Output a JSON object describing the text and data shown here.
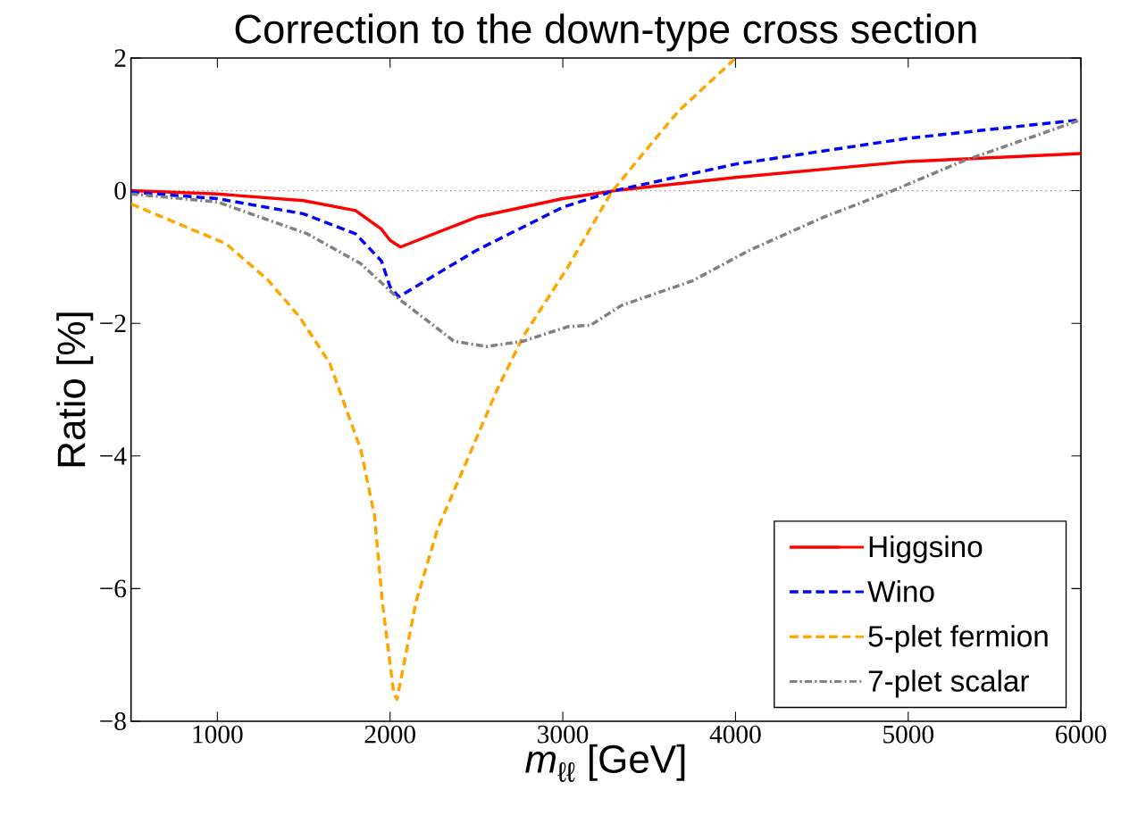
{
  "chart_data": {
    "type": "line",
    "title": "Correction to the down-type cross section",
    "xlabel": "*m*$_{ℓℓ}$ [GeV]",
    "ylabel": "Ratio [%]",
    "xlim": [
      500,
      6000
    ],
    "ylim": [
      -8,
      2
    ],
    "xticks": [
      1000,
      2000,
      3000,
      4000,
      5000,
      6000
    ],
    "yticks": [
      {
        "value": -8,
        "label": "−8"
      },
      {
        "value": -6,
        "label": "−6"
      },
      {
        "value": -4,
        "label": "−4"
      },
      {
        "value": -2,
        "label": "−2"
      },
      0,
      2
    ],
    "legend": "bottom right",
    "grid": false,
    "marker": "none",
    "ref_lines": [
      {
        "axis": "y",
        "value": 0,
        "color": "#808080",
        "line_style": "dotted"
      }
    ],
    "series": [
      {
        "name": "Higgsino",
        "color": "#ff0000",
        "line_style": "solid",
        "x": [
          500,
          1000,
          1500,
          1800,
          1950,
          2000,
          2060,
          2500,
          3000,
          3300,
          4000,
          5000,
          6000
        ],
        "values": [
          0,
          -0.05,
          -0.15,
          -0.3,
          -0.58,
          -0.75,
          -0.85,
          -0.4,
          -0.12,
          0,
          0.2,
          0.44,
          0.56
        ]
      },
      {
        "name": "Wino",
        "color": "#0000ff",
        "line_style": "dashed",
        "x": [
          500,
          1000,
          1500,
          1800,
          1950,
          2000,
          2050,
          2500,
          3000,
          3300,
          4000,
          5000,
          6000
        ],
        "values": [
          -0.02,
          -0.12,
          -0.35,
          -0.65,
          -1.06,
          -1.45,
          -1.6,
          -0.9,
          -0.25,
          0,
          0.4,
          0.79,
          1.07
        ]
      },
      {
        "name": "5-plet fermion",
        "color": "#ffa500",
        "line_style": "dashed",
        "x": [
          500,
          1050,
          1290,
          1475,
          1650,
          1830,
          1910,
          1955,
          2020,
          2040,
          2150,
          2275,
          2440,
          2620,
          2770,
          3030,
          3280,
          3465,
          3670,
          3960,
          4000
        ],
        "values": [
          -0.2,
          -0.8,
          -1.34,
          -1.9,
          -2.6,
          -3.9,
          -4.9,
          -6.2,
          -7.55,
          -7.67,
          -6.2,
          -5.1,
          -4.1,
          -3.0,
          -2.2,
          -1.15,
          -0.03,
          0.56,
          1.2,
          1.9,
          2.0
        ]
      },
      {
        "name": "7-plet scalar",
        "color": "#808080",
        "line_style": "dashdot",
        "x": [
          500,
          1000,
          1520,
          1830,
          2050,
          2210,
          2370,
          2560,
          2770,
          3030,
          3160,
          3340,
          3750,
          4080,
          4500,
          4910,
          5320,
          5740,
          6000
        ],
        "values": [
          -0.05,
          -0.17,
          -0.65,
          -1.1,
          -1.63,
          -1.95,
          -2.27,
          -2.35,
          -2.27,
          -2.05,
          -2.03,
          -1.73,
          -1.36,
          -0.9,
          -0.41,
          0,
          0.45,
          0.83,
          1.07
        ]
      }
    ]
  }
}
